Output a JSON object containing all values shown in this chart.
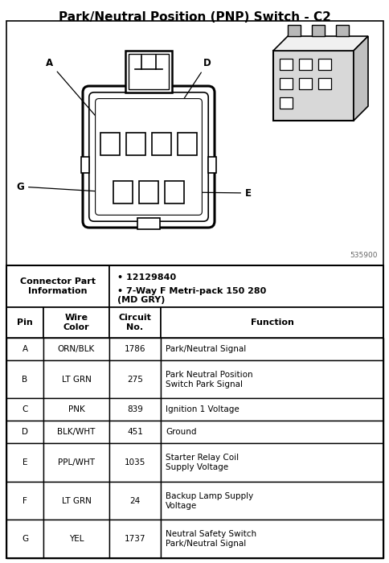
{
  "title": "Park/Neutral Position (PNP) Switch - C2",
  "connector_part_label": "Connector Part\nInformation",
  "part_number": "12129840",
  "part_desc": "7-Way F Metri-pack 150 280\n(MD GRY)",
  "watermark": "535900",
  "col_headers": [
    "Pin",
    "Wire\nColor",
    "Circuit\nNo.",
    "Function"
  ],
  "rows": [
    [
      "A",
      "ORN/BLK",
      "1786",
      "Park/Neutral Signal"
    ],
    [
      "B",
      "LT GRN",
      "275",
      "Park Neutral Position\nSwitch Park Signal"
    ],
    [
      "C",
      "PNK",
      "839",
      "Ignition 1 Voltage"
    ],
    [
      "D",
      "BLK/WHT",
      "451",
      "Ground"
    ],
    [
      "E",
      "PPL/WHT",
      "1035",
      "Starter Relay Coil\nSupply Voltage"
    ],
    [
      "F",
      "LT GRN",
      "24",
      "Backup Lamp Supply\nVoltage"
    ],
    [
      "G",
      "YEL",
      "1737",
      "Neutral Safety Switch\nPark/Neutral Signal"
    ]
  ],
  "bg_color": "#ffffff",
  "text_color": "#000000",
  "title_fontsize": 11,
  "diagram_label_fontsize": 8.5,
  "header_fontsize": 8,
  "cell_fontsize": 7.5
}
